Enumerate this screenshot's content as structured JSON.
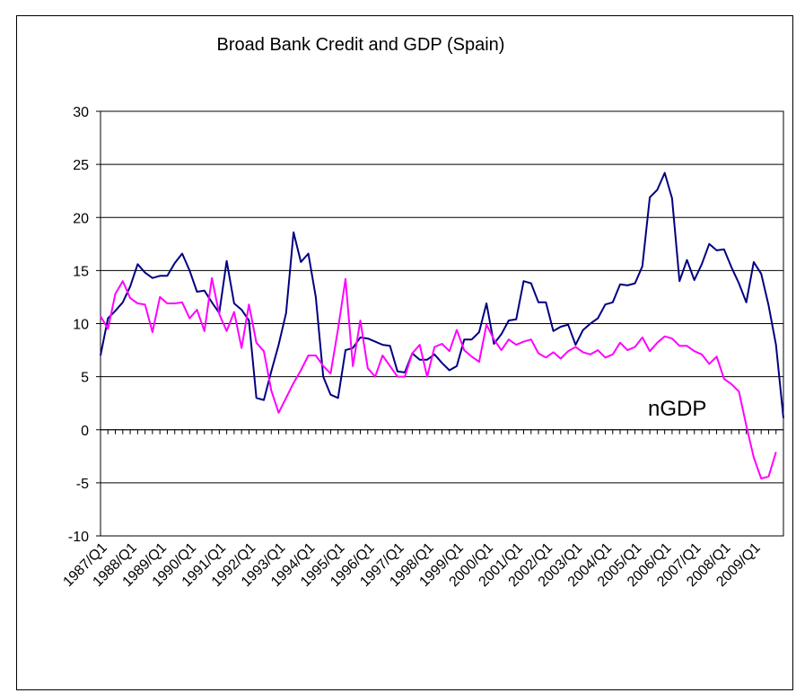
{
  "chart_data": {
    "type": "line",
    "title": "Broad Bank Credit and GDP (Spain)",
    "xlabel": "",
    "ylabel": "",
    "ylim": [
      -10,
      30
    ],
    "yticks": [
      30,
      25,
      20,
      15,
      10,
      5,
      0,
      -5,
      -10
    ],
    "x_tick_labels": [
      "1987/Q1",
      "1988/Q1",
      "1989/Q1",
      "1990/Q1",
      "1991/Q1",
      "1992/Q1",
      "1993/Q1",
      "1994/Q1",
      "1995/Q1",
      "1996/Q1",
      "1997/Q1",
      "1998/Q1",
      "1999/Q1",
      "2000/Q1",
      "2001/Q1",
      "2002/Q1",
      "2003/Q1",
      "2004/Q1",
      "2005/Q1",
      "2006/Q1",
      "2007/Q1",
      "2008/Q1",
      "2009/Q1"
    ],
    "grid": "horizontal",
    "annotation": "nGDP",
    "series": [
      {
        "color": "#000080",
        "values": [
          7.0,
          10.5,
          11.2,
          12.0,
          13.5,
          15.6,
          14.8,
          14.3,
          14.5,
          14.5,
          15.7,
          16.6,
          15.0,
          13.0,
          13.1,
          12.0,
          11.0,
          15.9,
          11.9,
          11.3,
          10.3,
          3.0,
          2.8,
          5.5,
          8.0,
          11.0,
          18.6,
          15.8,
          16.6,
          12.5,
          5.0,
          3.3,
          3.0,
          7.5,
          7.7,
          8.7,
          8.6,
          8.3,
          8.0,
          7.9,
          5.5,
          5.4,
          7.2,
          6.6,
          6.6,
          7.1,
          6.3,
          5.6,
          6.0,
          8.5,
          8.5,
          9.2,
          11.9,
          8.1,
          9.0,
          10.3,
          10.4,
          14.0,
          13.8,
          12.0,
          12.0,
          9.3,
          9.7,
          9.9,
          8.0,
          9.4,
          10.0,
          10.5,
          11.8,
          12.0,
          13.7,
          13.6,
          13.8,
          15.4,
          21.9,
          22.6,
          24.2,
          21.8,
          14.0,
          16.0,
          14.1,
          15.6,
          17.5,
          16.9,
          17.0,
          15.3,
          13.8,
          12.0,
          15.8,
          14.7,
          11.7,
          8.0,
          1.1
        ]
      },
      {
        "color": "#FF00FF",
        "values": [
          10.7,
          9.5,
          12.8,
          14.0,
          12.4,
          11.9,
          11.8,
          9.2,
          12.5,
          11.9,
          11.9,
          12.0,
          10.5,
          11.3,
          9.3,
          14.3,
          10.9,
          9.3,
          11.1,
          7.7,
          11.8,
          8.2,
          7.4,
          3.7,
          1.6,
          3.0,
          4.4,
          5.6,
          7.0,
          7.0,
          6.0,
          5.3,
          9.5,
          14.2,
          6.0,
          10.3,
          5.8,
          5.0,
          7.0,
          6.0,
          5.0,
          5.0,
          7.2,
          8.0,
          5.0,
          7.8,
          8.1,
          7.4,
          9.4,
          7.5,
          6.9,
          6.4,
          9.9,
          8.5,
          7.5,
          8.5,
          8.0,
          8.3,
          8.5,
          7.2,
          6.8,
          7.3,
          6.7,
          7.4,
          7.8,
          7.3,
          7.1,
          7.5,
          6.8,
          7.1,
          8.2,
          7.5,
          7.8,
          8.7,
          7.4,
          8.2,
          8.8,
          8.6,
          7.9,
          7.9,
          7.4,
          7.1,
          6.2,
          6.9,
          4.8,
          4.3,
          3.6,
          0.4,
          -2.6,
          -4.6,
          -4.4,
          -2.1
        ]
      }
    ]
  }
}
